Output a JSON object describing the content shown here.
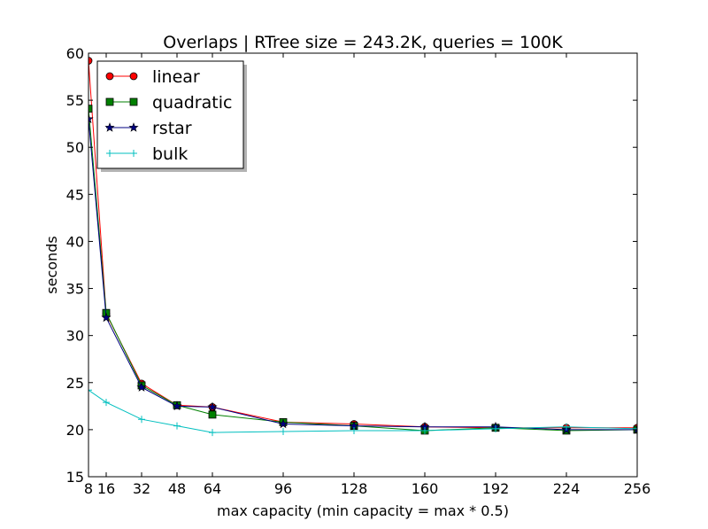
{
  "chart_data": {
    "type": "line",
    "title": "Overlaps | RTree size = 243.2K, queries = 100K",
    "xlabel": "max capacity (min capacity = max * 0.5)",
    "ylabel": "seconds",
    "x": [
      8,
      16,
      32,
      48,
      64,
      96,
      128,
      160,
      192,
      224,
      256
    ],
    "xticks": [
      "8",
      "16",
      "32",
      "48",
      "64",
      "96",
      "128",
      "160",
      "192",
      "224",
      "256"
    ],
    "yticks": [
      "15",
      "20",
      "25",
      "30",
      "35",
      "40",
      "45",
      "50",
      "55",
      "60"
    ],
    "xlim": [
      8,
      256
    ],
    "ylim": [
      15,
      60
    ],
    "grid": false,
    "legend_position": "top-left",
    "series": [
      {
        "name": "linear",
        "color": "#ff0000",
        "marker": "circle",
        "values": [
          59.2,
          32.3,
          24.9,
          22.6,
          22.4,
          20.8,
          20.6,
          20.3,
          20.2,
          20.2,
          20.2
        ]
      },
      {
        "name": "quadratic",
        "color": "#008000",
        "marker": "square",
        "values": [
          54.1,
          32.4,
          24.7,
          22.6,
          21.6,
          20.8,
          20.4,
          19.9,
          20.2,
          19.9,
          20.0
        ]
      },
      {
        "name": "rstar",
        "color": "#000080",
        "marker": "star",
        "values": [
          53.0,
          31.9,
          24.5,
          22.5,
          22.4,
          20.6,
          20.4,
          20.3,
          20.3,
          20.0,
          20.0
        ]
      },
      {
        "name": "bulk",
        "color": "#00bfbf",
        "marker": "plus",
        "values": [
          24.2,
          22.9,
          21.1,
          20.4,
          19.7,
          19.8,
          19.9,
          19.9,
          20.1,
          20.3,
          20.1
        ]
      }
    ]
  }
}
